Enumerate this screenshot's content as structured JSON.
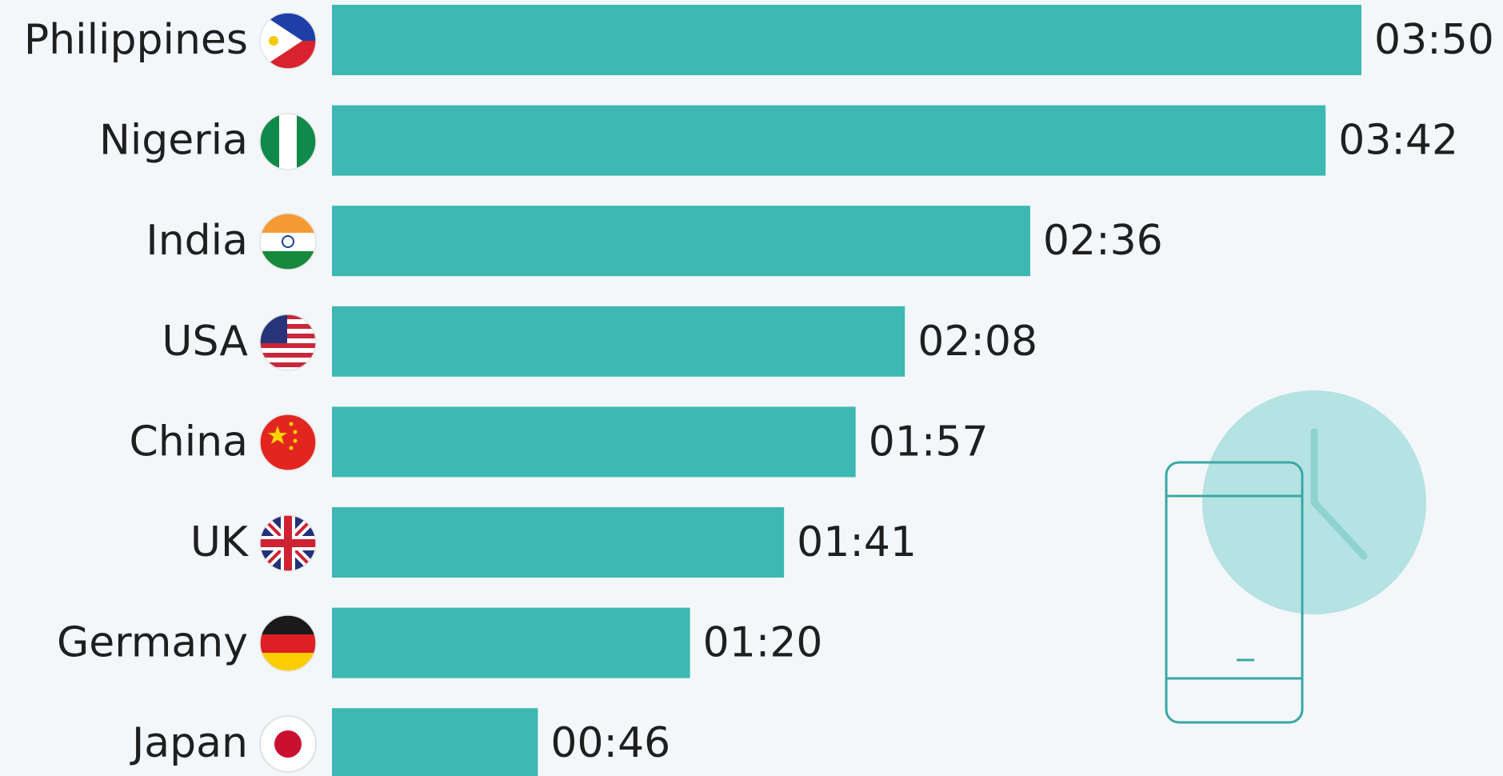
{
  "chart_data": {
    "type": "bar",
    "orientation": "horizontal",
    "categories": [
      "Philippines",
      "Nigeria",
      "India",
      "USA",
      "China",
      "UK",
      "Germany",
      "Japan"
    ],
    "values": [
      230,
      222,
      156,
      128,
      117,
      101,
      80,
      46
    ],
    "value_labels": [
      "03:50",
      "03:42",
      "02:36",
      "02:08",
      "01:57",
      "01:41",
      "01:20",
      "00:46"
    ],
    "xlim": [
      0,
      230
    ],
    "grid": false,
    "bar_color": "#3db8b2"
  },
  "flags": [
    "philippines-flag-icon",
    "nigeria-flag-icon",
    "india-flag-icon",
    "usa-flag-icon",
    "china-flag-icon",
    "uk-flag-icon",
    "germany-flag-icon",
    "japan-flag-icon"
  ],
  "decoration": {
    "illustration": "phone-clock-icon",
    "clock_color": "#a9dedd",
    "phone_outline_color": "#3aa8a4"
  }
}
